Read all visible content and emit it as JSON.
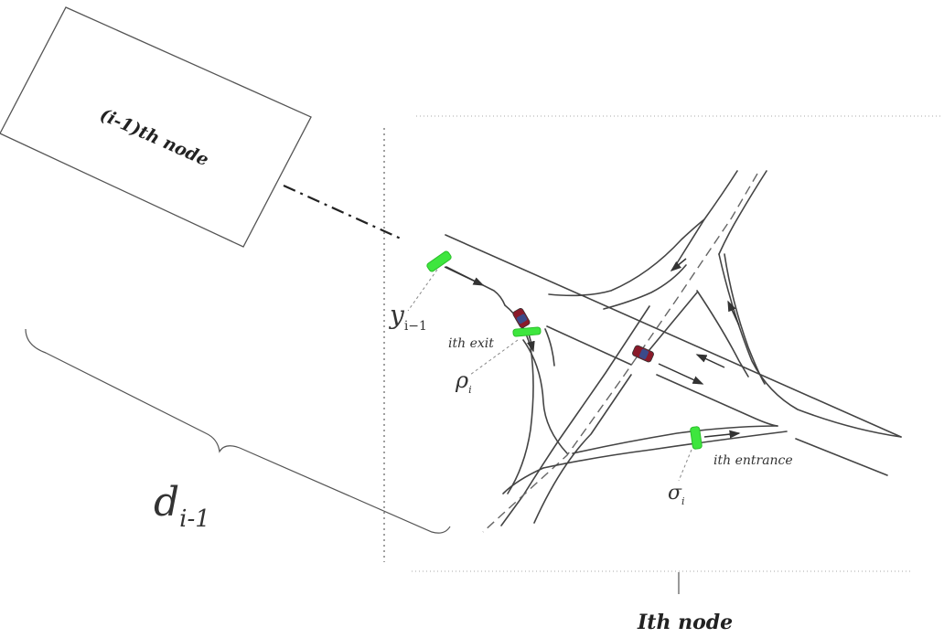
{
  "labels": {
    "prev_node": "(i-1)th node",
    "current_node": "Ith node",
    "exit": "ith exit",
    "entrance": "ith entrance",
    "distance_base": "d",
    "distance_sub": "i-1",
    "y_base": "y",
    "y_sub": "i−1",
    "rho_base": "ρ",
    "rho_sub": "i",
    "sigma_base": "σ",
    "sigma_sub": "i"
  },
  "colors": {
    "sensor": "#3ee63e",
    "car_body": "#8a1a2a",
    "car_window": "#3a4a8a",
    "line": "#444444"
  }
}
